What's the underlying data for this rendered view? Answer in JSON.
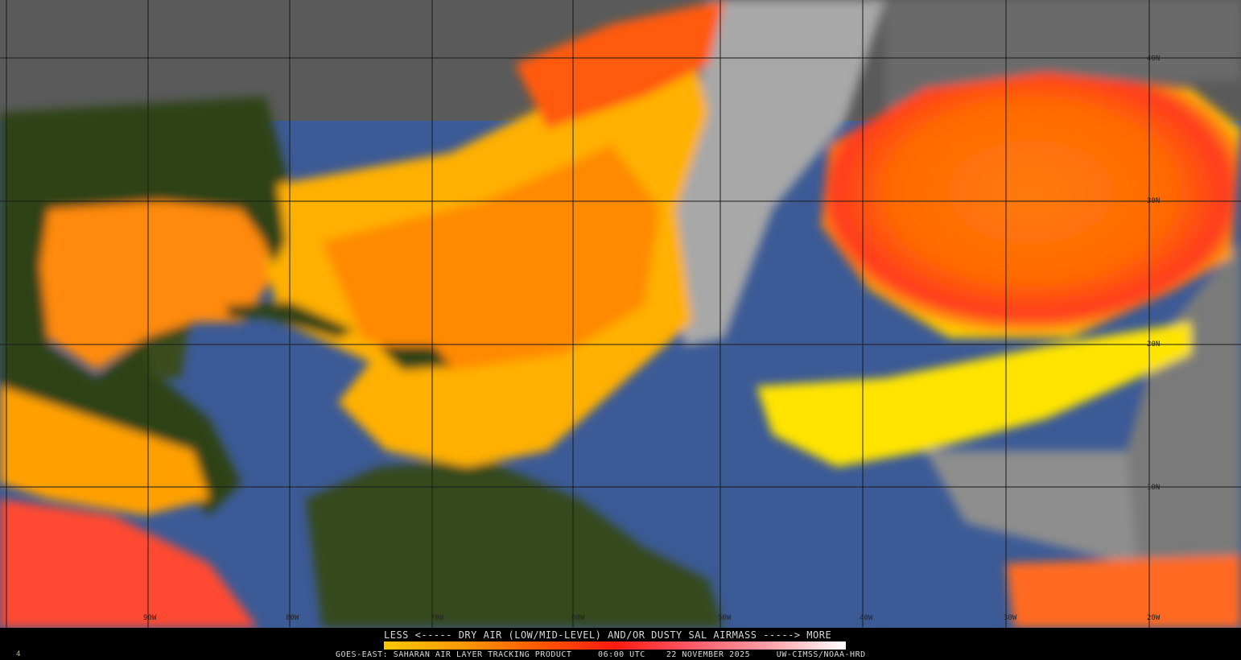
{
  "map": {
    "latitude_labels": [
      "40N",
      "30N",
      "20N",
      "10N"
    ],
    "longitude_labels": [
      "90W",
      "80W",
      "70W",
      "60W",
      "50W",
      "40W",
      "30W",
      "20W"
    ]
  },
  "legend": {
    "title": "LESS <----- DRY AIR (LOW/MID-LEVEL) AND/OR DUSTY SAL AIRMASS -----> MORE",
    "colorbar_colors": [
      "#ffc800",
      "#ff9a00",
      "#ff5a00",
      "#ff1a10",
      "#ff5a6a",
      "#ffa0a8",
      "#ffffff"
    ]
  },
  "footer": {
    "product": "GOES-EAST: SAHARAN AIR LAYER TRACKING PRODUCT",
    "time": "06:00 UTC",
    "date": "22 NOVEMBER 2025",
    "credit": "UW-CIMSS/NOAA-HRD",
    "frame": "4"
  },
  "colors": {
    "ocean": "#3c5a96",
    "land": "#2c4012",
    "cloud": "#9a9a9a",
    "sal_low": "#ffe000",
    "sal_mid": "#ff8a00",
    "sal_high": "#ff3a20"
  }
}
